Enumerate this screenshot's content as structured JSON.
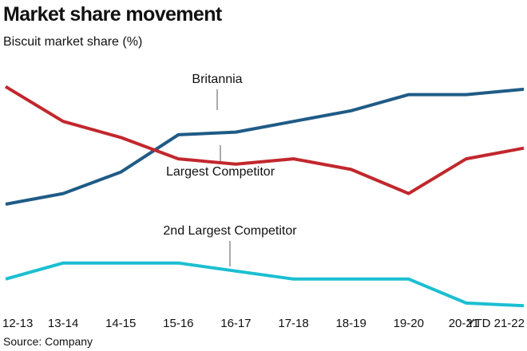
{
  "chart_data": {
    "type": "line",
    "title": "Market share movement",
    "subtitle": "Biscuit market share (%)",
    "source": "Source: Company",
    "categories": [
      "12-13",
      "13-14",
      "14-15",
      "15-16",
      "16-17",
      "17-18",
      "18-19",
      "19-20",
      "20-21",
      "YTD 21-22"
    ],
    "ylim": [
      0,
      100
    ],
    "grid": false,
    "series": [
      {
        "name": "Britannia",
        "color": "#1f5b86",
        "values": [
          40,
          44,
          52,
          66,
          67,
          71,
          75,
          81,
          81,
          83
        ]
      },
      {
        "name": "Largest Competitor",
        "color": "#c1272d",
        "values": [
          84,
          71,
          65,
          57,
          55,
          57,
          53,
          44,
          57,
          61
        ]
      },
      {
        "name": "2nd Largest Competitor",
        "color": "#1bbfd1",
        "values": [
          12,
          18,
          18,
          18,
          15,
          12,
          12,
          12,
          3,
          2
        ]
      }
    ]
  }
}
